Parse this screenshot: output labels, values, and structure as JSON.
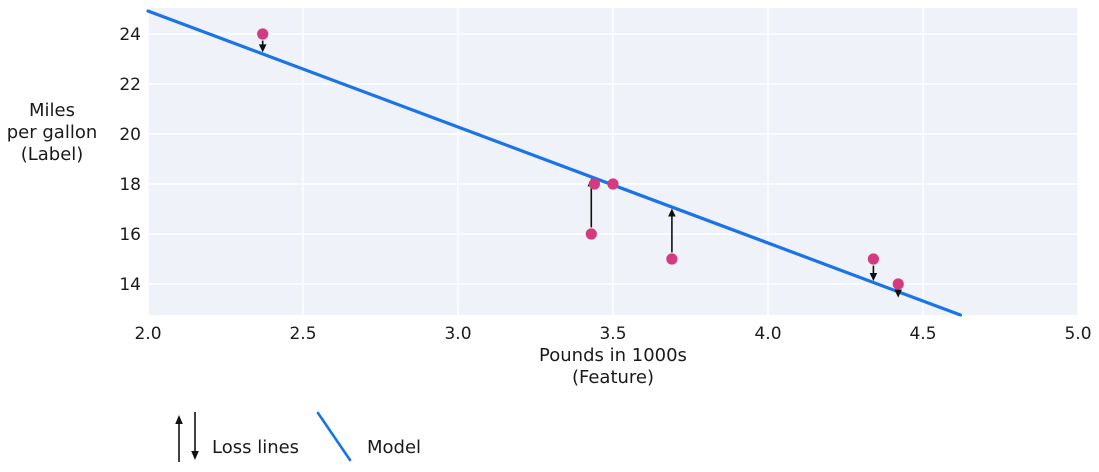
{
  "chart_data": {
    "type": "scatter",
    "title": "",
    "xlabel_lines": [
      "Pounds in 1000s",
      "(Feature)"
    ],
    "ylabel_lines": [
      "Miles",
      "per gallon",
      "(Label)"
    ],
    "xlim": [
      2.0,
      5.0
    ],
    "ylim": [
      12.76,
      25.04
    ],
    "grid": true,
    "legend_position": "bottom-left",
    "xticks": {
      "values": [
        2.0,
        2.5,
        3.0,
        3.5,
        4.0,
        4.5,
        5.0
      ],
      "labels": [
        "2.0",
        "2.5",
        "3.0",
        "3.5",
        "4.0",
        "4.5",
        "5.0"
      ]
    },
    "yticks": {
      "values": [
        14,
        16,
        18,
        20,
        22,
        24
      ],
      "labels": [
        "14",
        "16",
        "18",
        "20",
        "22",
        "24"
      ]
    },
    "points": [
      {
        "pounds": 2.37,
        "mpg": 24,
        "loss_arrow": true
      },
      {
        "pounds": 3.43,
        "mpg": 16,
        "loss_arrow": true
      },
      {
        "pounds": 3.44,
        "mpg": 18,
        "loss_arrow": false
      },
      {
        "pounds": 3.5,
        "mpg": 18,
        "loss_arrow": false
      },
      {
        "pounds": 3.69,
        "mpg": 15,
        "loss_arrow": true
      },
      {
        "pounds": 4.34,
        "mpg": 15,
        "loss_arrow": true
      },
      {
        "pounds": 4.42,
        "mpg": 14,
        "loss_arrow": true
      }
    ],
    "model_line": {
      "slope": -4.64,
      "intercept": 34.2
    },
    "legend": {
      "loss_label": "Loss lines",
      "model_label": "Model"
    },
    "colors": {
      "point": "#d23b80",
      "model": "#1a73e8",
      "plot_bg": "#eff2f8",
      "grid": "#ffffff",
      "arrow": "#111111",
      "text": "#1a1a1a",
      "figure_bg": "#ffffff"
    }
  }
}
